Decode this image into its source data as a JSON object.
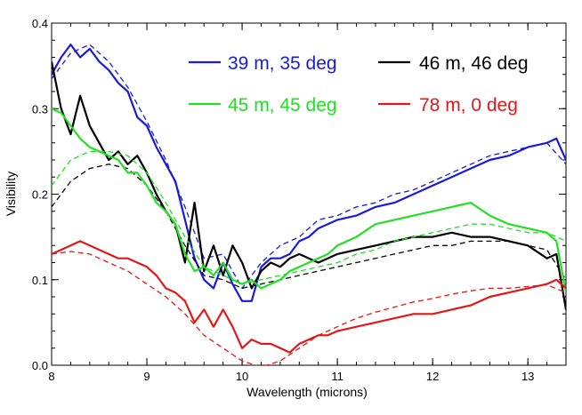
{
  "chart_data": {
    "type": "line",
    "title": "",
    "xlabel": "Wavelength (microns)",
    "ylabel": "Visibility",
    "xlim": [
      8.0,
      13.4
    ],
    "ylim": [
      0.0,
      0.4
    ],
    "xticks": [
      "8",
      "9",
      "10",
      "11",
      "12",
      "13"
    ],
    "xtick_values": [
      8,
      9,
      10,
      11,
      12,
      13
    ],
    "yticks": [
      "0.0",
      "0.1",
      "0.2",
      "0.3",
      "0.4"
    ],
    "ytick_values": [
      0.0,
      0.1,
      0.2,
      0.3,
      0.4
    ],
    "grid": false,
    "legend_placement": "top",
    "series": [
      {
        "name": "39 m, 35 deg",
        "color": "#1a1adc",
        "style": "solid",
        "x": [
          8.0,
          8.1,
          8.2,
          8.3,
          8.4,
          8.5,
          8.6,
          8.7,
          8.8,
          8.9,
          9.0,
          9.1,
          9.2,
          9.3,
          9.4,
          9.5,
          9.6,
          9.7,
          9.8,
          9.9,
          10.0,
          10.1,
          10.2,
          10.3,
          10.4,
          10.5,
          10.6,
          10.7,
          10.8,
          10.9,
          11.0,
          11.2,
          11.4,
          11.6,
          11.8,
          12.0,
          12.2,
          12.4,
          12.6,
          12.8,
          13.0,
          13.2,
          13.3,
          13.4
        ],
        "y": [
          0.34,
          0.36,
          0.375,
          0.36,
          0.37,
          0.355,
          0.345,
          0.33,
          0.32,
          0.29,
          0.28,
          0.255,
          0.235,
          0.215,
          0.17,
          0.125,
          0.1,
          0.09,
          0.12,
          0.095,
          0.075,
          0.075,
          0.115,
          0.125,
          0.125,
          0.13,
          0.145,
          0.15,
          0.16,
          0.165,
          0.17,
          0.175,
          0.185,
          0.19,
          0.2,
          0.21,
          0.22,
          0.23,
          0.24,
          0.245,
          0.255,
          0.26,
          0.265,
          0.24
        ]
      },
      {
        "name": "",
        "color": "#1a1adc",
        "style": "dashed",
        "x": [
          8.0,
          8.2,
          8.4,
          8.6,
          8.8,
          9.0,
          9.2,
          9.4,
          9.6,
          9.8,
          10.0,
          10.2,
          10.4,
          10.6,
          10.8,
          11.0,
          11.2,
          11.4,
          11.6,
          11.8,
          12.0,
          12.2,
          12.4,
          12.6,
          12.8,
          13.0,
          13.2,
          13.4
        ],
        "y": [
          0.335,
          0.365,
          0.375,
          0.355,
          0.325,
          0.285,
          0.24,
          0.185,
          0.125,
          0.13,
          0.09,
          0.12,
          0.14,
          0.15,
          0.17,
          0.175,
          0.185,
          0.19,
          0.2,
          0.205,
          0.215,
          0.225,
          0.235,
          0.245,
          0.25,
          0.255,
          0.26,
          0.235
        ]
      },
      {
        "name": "46 m, 46 deg",
        "color": "#000000",
        "style": "solid",
        "x": [
          8.0,
          8.1,
          8.2,
          8.3,
          8.4,
          8.5,
          8.6,
          8.7,
          8.8,
          8.9,
          9.0,
          9.1,
          9.2,
          9.3,
          9.4,
          9.5,
          9.6,
          9.7,
          9.8,
          9.9,
          10.0,
          10.1,
          10.2,
          10.3,
          10.4,
          10.5,
          10.6,
          10.7,
          10.8,
          10.9,
          11.0,
          11.2,
          11.4,
          11.6,
          11.8,
          12.0,
          12.2,
          12.4,
          12.6,
          12.8,
          13.0,
          13.2,
          13.3,
          13.4
        ],
        "y": [
          0.355,
          0.3,
          0.27,
          0.315,
          0.28,
          0.26,
          0.24,
          0.25,
          0.235,
          0.245,
          0.225,
          0.2,
          0.18,
          0.165,
          0.12,
          0.19,
          0.11,
          0.14,
          0.105,
          0.14,
          0.12,
          0.09,
          0.11,
          0.12,
          0.115,
          0.125,
          0.13,
          0.125,
          0.12,
          0.125,
          0.13,
          0.135,
          0.14,
          0.145,
          0.15,
          0.15,
          0.155,
          0.15,
          0.15,
          0.145,
          0.14,
          0.125,
          0.13,
          0.065
        ]
      },
      {
        "name": "",
        "color": "#000000",
        "style": "dashed",
        "x": [
          8.0,
          8.2,
          8.4,
          8.6,
          8.8,
          9.0,
          9.2,
          9.4,
          9.6,
          9.8,
          10.0,
          10.2,
          10.4,
          10.6,
          10.8,
          11.0,
          11.2,
          11.4,
          11.6,
          11.8,
          12.0,
          12.2,
          12.4,
          12.6,
          12.8,
          13.0,
          13.2,
          13.4
        ],
        "y": [
          0.185,
          0.215,
          0.23,
          0.235,
          0.23,
          0.21,
          0.18,
          0.14,
          0.105,
          0.1,
          0.09,
          0.095,
          0.1,
          0.105,
          0.11,
          0.115,
          0.12,
          0.125,
          0.13,
          0.135,
          0.14,
          0.14,
          0.145,
          0.145,
          0.145,
          0.14,
          0.135,
          0.1
        ]
      },
      {
        "name": "45 m, 45 deg",
        "color": "#22e022",
        "style": "solid",
        "x": [
          8.0,
          8.1,
          8.2,
          8.3,
          8.4,
          8.5,
          8.6,
          8.7,
          8.8,
          8.9,
          9.0,
          9.1,
          9.2,
          9.3,
          9.4,
          9.5,
          9.6,
          9.7,
          9.8,
          9.9,
          10.0,
          10.1,
          10.2,
          10.3,
          10.4,
          10.5,
          10.6,
          10.7,
          10.8,
          10.9,
          11.0,
          11.2,
          11.4,
          11.6,
          11.8,
          12.0,
          12.2,
          12.4,
          12.6,
          12.8,
          13.0,
          13.2,
          13.3,
          13.4
        ],
        "y": [
          0.3,
          0.295,
          0.28,
          0.265,
          0.255,
          0.25,
          0.245,
          0.24,
          0.225,
          0.225,
          0.21,
          0.19,
          0.18,
          0.165,
          0.13,
          0.11,
          0.115,
          0.105,
          0.12,
          0.1,
          0.095,
          0.1,
          0.09,
          0.095,
          0.1,
          0.11,
          0.115,
          0.12,
          0.125,
          0.13,
          0.14,
          0.15,
          0.165,
          0.17,
          0.175,
          0.18,
          0.185,
          0.19,
          0.175,
          0.165,
          0.16,
          0.155,
          0.145,
          0.085
        ]
      },
      {
        "name": "",
        "color": "#22e022",
        "style": "dashed",
        "x": [
          8.0,
          8.2,
          8.4,
          8.6,
          8.8,
          9.0,
          9.2,
          9.4,
          9.6,
          9.8,
          10.0,
          10.2,
          10.4,
          10.6,
          10.8,
          11.0,
          11.2,
          11.4,
          11.6,
          11.8,
          12.0,
          12.2,
          12.4,
          12.6,
          12.8,
          13.0,
          13.2,
          13.4
        ],
        "y": [
          0.21,
          0.24,
          0.25,
          0.25,
          0.245,
          0.225,
          0.19,
          0.15,
          0.115,
          0.105,
          0.095,
          0.1,
          0.105,
          0.11,
          0.115,
          0.12,
          0.13,
          0.135,
          0.145,
          0.15,
          0.155,
          0.16,
          0.165,
          0.165,
          0.16,
          0.155,
          0.155,
          0.145
        ]
      },
      {
        "name": "78 m, 0 deg",
        "color": "#e01818",
        "style": "solid",
        "x": [
          8.0,
          8.1,
          8.2,
          8.3,
          8.4,
          8.5,
          8.6,
          8.7,
          8.8,
          8.9,
          9.0,
          9.1,
          9.2,
          9.3,
          9.4,
          9.5,
          9.6,
          9.7,
          9.8,
          9.9,
          10.0,
          10.1,
          10.2,
          10.3,
          10.4,
          10.5,
          10.6,
          10.7,
          10.8,
          10.9,
          11.0,
          11.2,
          11.4,
          11.6,
          11.8,
          12.0,
          12.2,
          12.4,
          12.6,
          12.8,
          13.0,
          13.2,
          13.3,
          13.4
        ],
        "y": [
          0.13,
          0.135,
          0.14,
          0.145,
          0.14,
          0.135,
          0.13,
          0.125,
          0.125,
          0.12,
          0.115,
          0.105,
          0.09,
          0.085,
          0.075,
          0.05,
          0.065,
          0.045,
          0.065,
          0.045,
          0.02,
          0.03,
          0.025,
          0.025,
          0.02,
          0.015,
          0.025,
          0.03,
          0.035,
          0.035,
          0.04,
          0.045,
          0.05,
          0.055,
          0.06,
          0.06,
          0.065,
          0.07,
          0.08,
          0.085,
          0.09,
          0.095,
          0.1,
          0.09
        ]
      },
      {
        "name": "",
        "color": "#e01818",
        "style": "dashed",
        "x": [
          8.0,
          8.2,
          8.4,
          8.6,
          8.8,
          9.0,
          9.2,
          9.4,
          9.6,
          9.8,
          10.0,
          10.2,
          10.4,
          10.6,
          10.8,
          11.0,
          11.2,
          11.4,
          11.6,
          11.8,
          12.0,
          12.2,
          12.4,
          12.6,
          12.8,
          13.0,
          13.2,
          13.4
        ],
        "y": [
          0.13,
          0.133,
          0.13,
          0.12,
          0.11,
          0.095,
          0.08,
          0.06,
          0.035,
          0.02,
          0.005,
          -0.002,
          0.005,
          0.02,
          0.035,
          0.045,
          0.055,
          0.062,
          0.068,
          0.074,
          0.078,
          0.083,
          0.087,
          0.09,
          0.09,
          0.092,
          0.094,
          0.085
        ]
      }
    ]
  }
}
